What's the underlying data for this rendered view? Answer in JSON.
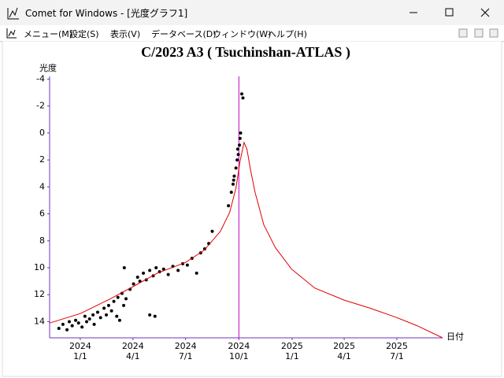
{
  "window": {
    "title": "Comet for Windows - [光度グラフ1]",
    "menu": [
      "メニュー(M)",
      "設定(S)",
      "表示(V)",
      "データベース(D)",
      "ウィンドウ(W)",
      "ヘルプ(H)"
    ]
  },
  "chart_data": {
    "type": "scatter",
    "title": "C/2023 A3 ( Tsuchinshan-ATLAS )",
    "y_label": "光度",
    "x_label": "日付",
    "xlim": [
      "2023-11-09",
      "2025-09-18"
    ],
    "xticks": [
      {
        "value": "2024-01-01",
        "label": "1/1"
      },
      {
        "value": "2024-04-01",
        "label": "4/1"
      },
      {
        "value": "2024-07-01",
        "label": "7/1"
      },
      {
        "value": "2024-10-01",
        "label": "10/1"
      },
      {
        "value": "2025-01-01",
        "label": "1/1"
      },
      {
        "value": "2025-04-01",
        "label": "4/1"
      },
      {
        "value": "2025-07-01",
        "label": "7/1"
      }
    ],
    "xtick_years": [
      "2024",
      "2024",
      "2024",
      "2024",
      "2025",
      "2025",
      "2025"
    ],
    "ylim": [
      -4.2,
      15.2
    ],
    "y_inverted": true,
    "yticks": [
      -4,
      -2,
      0,
      2,
      4,
      6,
      8,
      10,
      12,
      14
    ],
    "axis_color": "#7030c0",
    "vline": {
      "x": "2024-10-01",
      "color": "#c000c0"
    },
    "series": [
      {
        "mark": "point",
        "color": "#000000",
        "x": [
          "2023-11-25",
          "2023-12-02",
          "2023-12-09",
          "2023-12-13",
          "2023-12-18",
          "2023-12-24",
          "2023-12-29",
          "2024-01-04",
          "2024-01-09",
          "2024-01-12",
          "2024-01-17",
          "2024-01-23",
          "2024-01-25",
          "2024-01-31",
          "2024-02-05",
          "2024-02-11",
          "2024-02-15",
          "2024-02-19",
          "2024-02-24",
          "2024-02-28",
          "2024-03-04",
          "2024-03-06",
          "2024-03-09",
          "2024-03-13",
          "2024-03-16",
          "2024-03-20",
          "2024-03-17",
          "2024-03-27",
          "2024-04-02",
          "2024-04-09",
          "2024-04-13",
          "2024-04-19",
          "2024-04-24",
          "2024-04-30",
          "2024-05-06",
          "2024-05-11",
          "2024-04-30",
          "2024-05-09",
          "2024-05-17",
          "2024-05-24",
          "2024-06-01",
          "2024-06-09",
          "2024-06-18",
          "2024-06-26",
          "2024-07-04",
          "2024-07-12",
          "2024-07-20",
          "2024-07-27",
          "2024-08-03",
          "2024-08-10",
          "2024-08-16",
          "2024-09-13",
          "2024-09-18",
          "2024-09-21",
          "2024-09-23",
          "2024-09-26",
          "2024-09-28",
          "2024-09-30",
          "2024-10-02",
          "2024-10-03",
          "2024-10-04",
          "2024-10-06",
          "2024-10-08",
          "2024-09-29",
          "2024-09-22"
        ],
        "values": [
          14.5,
          14.2,
          14.6,
          14.0,
          14.3,
          13.9,
          14.1,
          14.4,
          13.6,
          14.0,
          13.8,
          13.5,
          14.2,
          13.3,
          13.7,
          13.0,
          13.5,
          12.8,
          13.2,
          12.5,
          13.6,
          12.2,
          13.9,
          11.9,
          12.8,
          12.3,
          10.0,
          11.6,
          11.2,
          10.7,
          11.0,
          10.4,
          10.9,
          10.2,
          10.6,
          10.0,
          13.5,
          13.6,
          10.3,
          10.1,
          10.5,
          9.9,
          10.2,
          9.7,
          9.8,
          9.3,
          10.4,
          8.9,
          8.6,
          8.2,
          7.3,
          5.4,
          4.4,
          3.8,
          3.2,
          2.6,
          2.0,
          1.6,
          0.9,
          0.4,
          0.0,
          -2.9,
          -2.6,
          1.2,
          3.5
        ]
      },
      {
        "mark": "line",
        "color": "#e00000",
        "x": [
          "2023-11-09",
          "2024-01-01",
          "2024-02-22",
          "2024-04-01",
          "2024-05-13",
          "2024-07-01",
          "2024-08-02",
          "2024-08-30",
          "2024-09-15",
          "2024-09-26",
          "2024-10-03",
          "2024-10-10",
          "2024-10-15",
          "2024-10-21",
          "2024-10-29",
          "2024-11-13",
          "2024-12-03",
          "2024-12-31",
          "2025-02-09",
          "2025-04-01",
          "2025-05-16",
          "2025-07-01",
          "2025-08-05",
          "2025-09-18"
        ],
        "values": [
          14.1,
          13.4,
          12.3,
          11.4,
          10.4,
          9.6,
          8.7,
          7.3,
          5.9,
          4.1,
          2.1,
          0.7,
          1.2,
          2.7,
          4.4,
          6.8,
          8.5,
          10.1,
          11.5,
          12.4,
          13.0,
          13.7,
          14.3,
          15.2
        ]
      }
    ]
  }
}
